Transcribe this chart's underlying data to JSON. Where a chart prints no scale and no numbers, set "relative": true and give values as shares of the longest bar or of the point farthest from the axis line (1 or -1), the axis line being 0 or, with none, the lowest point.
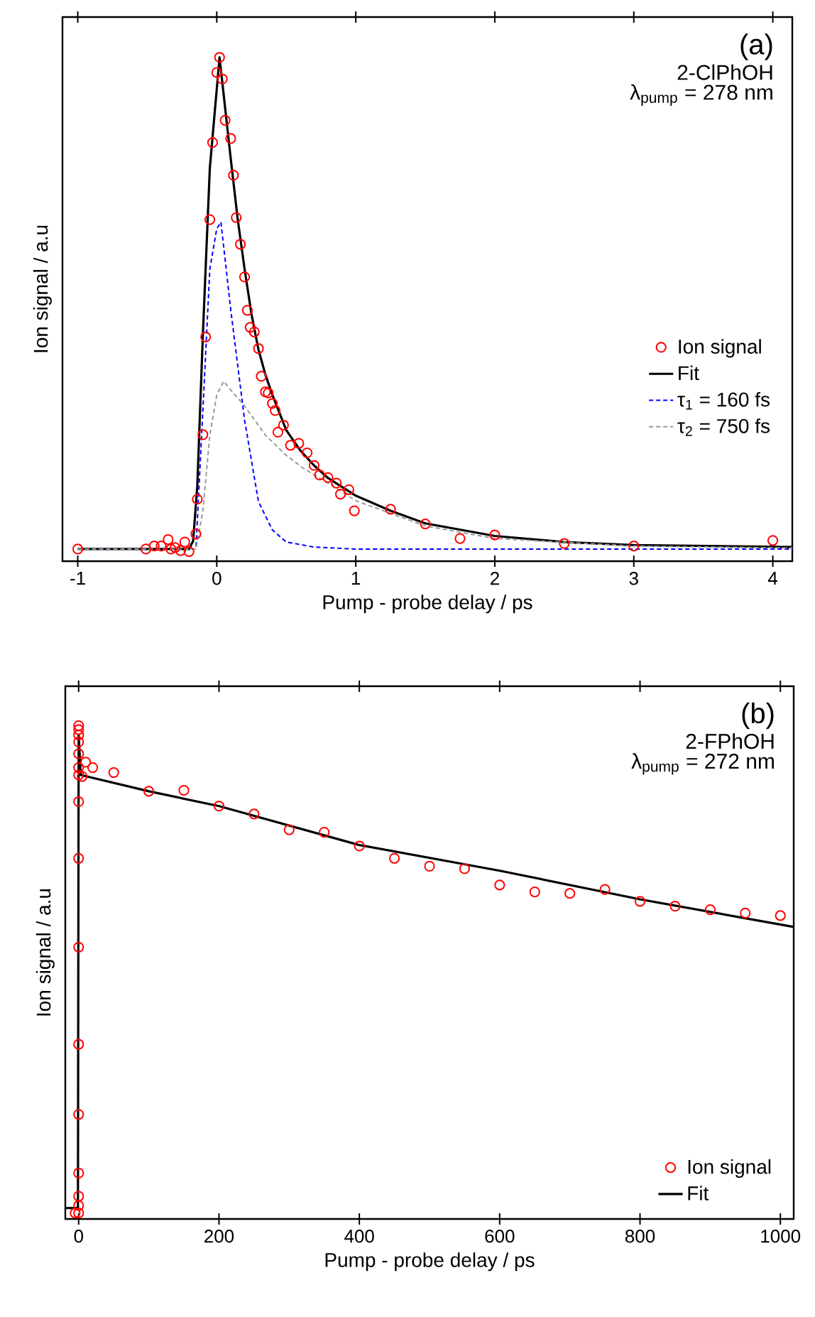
{
  "chart_data": [
    {
      "type": "line",
      "relative": true,
      "xlabel": "Pump - probe delay / ps",
      "ylabel": "Ion signal / a.u",
      "xlim": [
        -1.11,
        4.14
      ],
      "xticks": [
        -1,
        0,
        1,
        2,
        3,
        4
      ],
      "tick_labels": "x",
      "legend": "right",
      "annotations": [
        "(a)",
        "2-ClPhOH",
        "λ$_{pump}$ = 278 nm"
      ],
      "series": [
        {
          "name": "Ion signal",
          "type": "scatter",
          "marker": "circle",
          "color": "#ff0000",
          "x": [
            -1,
            -0.51,
            -0.45,
            -0.4,
            -0.35,
            -0.33,
            -0.3,
            -0.26,
            -0.23,
            -0.2,
            -0.15,
            -0.14,
            -0.1,
            -0.08,
            -0.05,
            -0.03,
            0,
            0.02,
            0.04,
            0.06,
            0.1,
            0.12,
            0.14,
            0.17,
            0.2,
            0.22,
            0.24,
            0.27,
            0.3,
            0.32,
            0.35,
            0.37,
            0.4,
            0.42,
            0.44,
            0.48,
            0.53,
            0.59,
            0.65,
            0.7,
            0.74,
            0.8,
            0.86,
            0.89,
            0.95,
            0.99,
            1.25,
            1.5,
            1.75,
            2,
            2.5,
            3,
            4
          ],
          "values": [
            0.024,
            0.024,
            0.03,
            0.03,
            0.043,
            0.024,
            0.027,
            0.021,
            0.038,
            0.019,
            0.054,
            0.123,
            0.251,
            0.445,
            0.678,
            0.831,
            0.97,
            1.0,
            0.957,
            0.875,
            0.839,
            0.766,
            0.682,
            0.629,
            0.564,
            0.498,
            0.464,
            0.455,
            0.422,
            0.367,
            0.336,
            0.334,
            0.313,
            0.299,
            0.256,
            0.27,
            0.23,
            0.234,
            0.215,
            0.19,
            0.171,
            0.166,
            0.155,
            0.133,
            0.142,
            0.1,
            0.103,
            0.074,
            0.045,
            0.052,
            0.035,
            0.03,
            0.041
          ]
        },
        {
          "name": "Fit",
          "color": "#000000",
          "line_style": "solid",
          "x": [
            -1,
            -0.2,
            -0.17,
            -0.14,
            -0.1,
            -0.05,
            0.02,
            0.06,
            0.1,
            0.15,
            0.2,
            0.25,
            0.3,
            0.35,
            0.4,
            0.5,
            0.6,
            0.7,
            0.8,
            1,
            1.25,
            1.5,
            2,
            2.5,
            3,
            4.14
          ],
          "values": [
            0.024,
            0.024,
            0.04,
            0.15,
            0.45,
            0.78,
            1.0,
            0.9,
            0.8,
            0.68,
            0.58,
            0.49,
            0.42,
            0.37,
            0.33,
            0.26,
            0.22,
            0.19,
            0.165,
            0.13,
            0.1,
            0.075,
            0.05,
            0.038,
            0.032,
            0.028
          ]
        },
        {
          "name": "τ$_{1}$ = 160 fs",
          "color": "#0000ff",
          "line_style": "dashed",
          "x": [
            -1,
            -0.15,
            -0.1,
            -0.05,
            0,
            0.03,
            0.1,
            0.2,
            0.3,
            0.4,
            0.5,
            0.7,
            1,
            4.14
          ],
          "values": [
            0.024,
            0.024,
            0.3,
            0.58,
            0.66,
            0.673,
            0.5,
            0.28,
            0.118,
            0.062,
            0.038,
            0.028,
            0.024,
            0.024
          ]
        },
        {
          "name": "τ$_{2}$ = 750 fs",
          "color": "#999999",
          "line_style": "dashed",
          "x": [
            -1,
            -0.15,
            -0.1,
            -0.05,
            0,
            0.05,
            0.1,
            0.2,
            0.35,
            0.5,
            0.62,
            0.8,
            1,
            1.5,
            2,
            3,
            4.14
          ],
          "values": [
            0.024,
            0.024,
            0.1,
            0.25,
            0.33,
            0.357,
            0.34,
            0.308,
            0.25,
            0.21,
            0.185,
            0.155,
            0.12,
            0.07,
            0.045,
            0.03,
            0.026
          ]
        }
      ]
    },
    {
      "type": "line",
      "relative": true,
      "xlabel": "Pump - probe delay / ps",
      "ylabel": "Ion signal / a.u",
      "xlim": [
        -19,
        1019
      ],
      "xticks": [
        0,
        200,
        400,
        600,
        800,
        1000
      ],
      "tick_labels": "x",
      "legend": "bottom right",
      "annotations": [
        "(b)",
        "2-FPhOH",
        "λ$_{pump}$ = 272 nm"
      ],
      "series": [
        {
          "name": "Ion signal",
          "type": "scatter",
          "marker": "circle",
          "color": "#ff0000",
          "x": [
            -5,
            0,
            0,
            0,
            0,
            0,
            0,
            0,
            0,
            0,
            0,
            0,
            0,
            0,
            0,
            0,
            0,
            5,
            10,
            20,
            50,
            100,
            150,
            200,
            250,
            300,
            350,
            400,
            450,
            500,
            550,
            600,
            650,
            700,
            750,
            800,
            850,
            900,
            950,
            1000
          ],
          "values": [
            0.012,
            0.012,
            0.027,
            0.046,
            0.093,
            0.212,
            0.354,
            0.551,
            0.731,
            0.846,
            0.9,
            0.915,
            0.943,
            0.967,
            0.981,
            0.992,
            1.0,
            0.897,
            0.926,
            0.915,
            0.905,
            0.867,
            0.869,
            0.837,
            0.821,
            0.789,
            0.784,
            0.756,
            0.731,
            0.715,
            0.71,
            0.677,
            0.663,
            0.66,
            0.668,
            0.644,
            0.634,
            0.627,
            0.62,
            0.615
          ]
        },
        {
          "name": "Fit",
          "color": "#000000",
          "line_style": "solid",
          "x": [
            -19,
            -1,
            0,
            3,
            100,
            200,
            400,
            600,
            800,
            1019
          ],
          "values": [
            0.022,
            0.022,
            0.981,
            0.9,
            0.867,
            0.837,
            0.758,
            0.706,
            0.648,
            0.592
          ]
        }
      ]
    }
  ]
}
